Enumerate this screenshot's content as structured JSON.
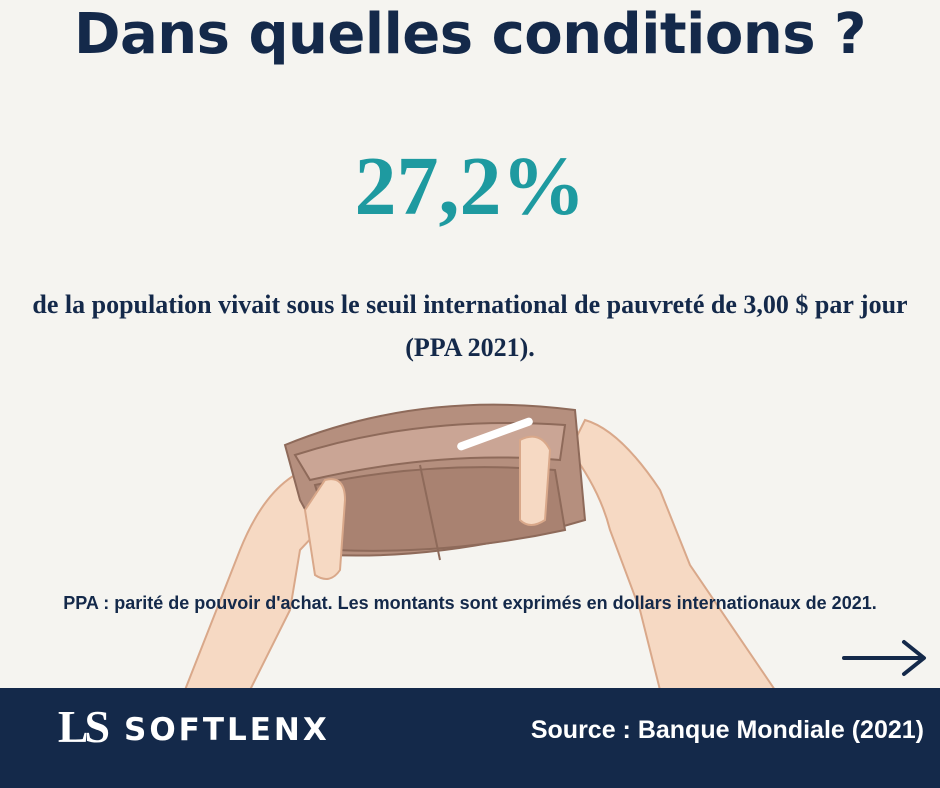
{
  "header": {
    "title": "Dans quelles conditions ?"
  },
  "stat": {
    "value": "27,2%",
    "description": "de la population vivait sous le seuil international de pauvreté de 3,00 $ par jour (PPA 2021)."
  },
  "note": "PPA : parité de pouvoir d'achat. Les montants sont exprimés en dollars internationaux de 2021.",
  "footer": {
    "logo": "LS",
    "brand": "SOFTLENX",
    "source": "Source : Banque Mondiale (2021)"
  }
}
